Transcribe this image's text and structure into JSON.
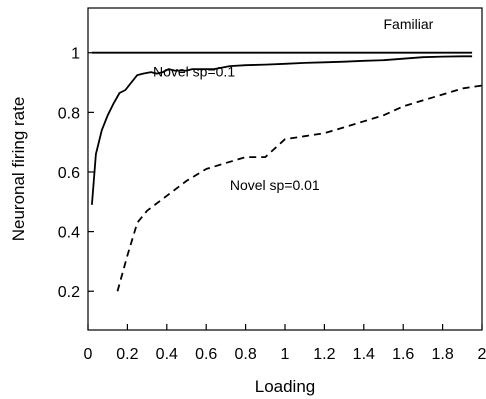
{
  "chart_data": {
    "type": "line",
    "xlabel": "Loading",
    "ylabel": "Neuronal firing rate",
    "xlim": [
      0,
      2
    ],
    "ylim": [
      0.07,
      1.15
    ],
    "x_ticks": [
      0,
      0.2,
      0.4,
      0.6,
      0.8,
      1,
      1.2,
      1.4,
      1.6,
      1.8,
      2
    ],
    "x_tick_labels": [
      "0",
      "0.2",
      "0.4",
      "0.6",
      "0.8",
      "1",
      "1.2",
      "1.4",
      "1.6",
      "1.8",
      "2"
    ],
    "y_ticks": [
      0.2,
      0.4,
      0.6,
      0.8,
      1
    ],
    "y_tick_labels": [
      "0.2",
      "0.4",
      "0.6",
      "0.8",
      "1"
    ],
    "grid": false,
    "legend": "none",
    "series": [
      {
        "name": "Familiar",
        "style": "solid",
        "color": "#000000",
        "x": [
          0.02,
          1.95
        ],
        "y": [
          1.0,
          1.0
        ]
      },
      {
        "name": "Novel sp=0.1",
        "style": "solid",
        "color": "#000000",
        "x": [
          0.02,
          0.04,
          0.07,
          0.1,
          0.13,
          0.16,
          0.19,
          0.22,
          0.25,
          0.28,
          0.32,
          0.35,
          0.38,
          0.41,
          0.44,
          0.47,
          0.5,
          0.53,
          0.56,
          0.6,
          0.64,
          0.68,
          0.72,
          0.8,
          0.9,
          1.0,
          1.1,
          1.2,
          1.3,
          1.4,
          1.5,
          1.6,
          1.7,
          1.8,
          1.9,
          1.95
        ],
        "y": [
          0.49,
          0.66,
          0.74,
          0.79,
          0.83,
          0.865,
          0.875,
          0.9,
          0.925,
          0.93,
          0.935,
          0.93,
          0.935,
          0.945,
          0.94,
          0.94,
          0.94,
          0.945,
          0.945,
          0.945,
          0.945,
          0.95,
          0.955,
          0.958,
          0.96,
          0.963,
          0.966,
          0.968,
          0.97,
          0.973,
          0.975,
          0.98,
          0.985,
          0.987,
          0.988,
          0.988
        ]
      },
      {
        "name": "Novel sp=0.01",
        "style": "dashed",
        "color": "#000000",
        "x": [
          0.15,
          0.2,
          0.25,
          0.3,
          0.4,
          0.5,
          0.6,
          0.7,
          0.8,
          0.9,
          1.0,
          1.1,
          1.2,
          1.3,
          1.4,
          1.5,
          1.6,
          1.7,
          1.8,
          1.9,
          2.0
        ],
        "y": [
          0.2,
          0.32,
          0.43,
          0.47,
          0.52,
          0.57,
          0.61,
          0.63,
          0.65,
          0.65,
          0.71,
          0.72,
          0.73,
          0.75,
          0.77,
          0.79,
          0.82,
          0.84,
          0.86,
          0.88,
          0.89
        ]
      }
    ],
    "annotations": [
      {
        "text": "Familiar",
        "x": 1.5,
        "y": 1.08
      },
      {
        "text": "Novel sp=0.1",
        "x": 0.33,
        "y": 0.92
      },
      {
        "text": "Novel sp=0.01",
        "x": 0.72,
        "y": 0.54
      }
    ]
  }
}
